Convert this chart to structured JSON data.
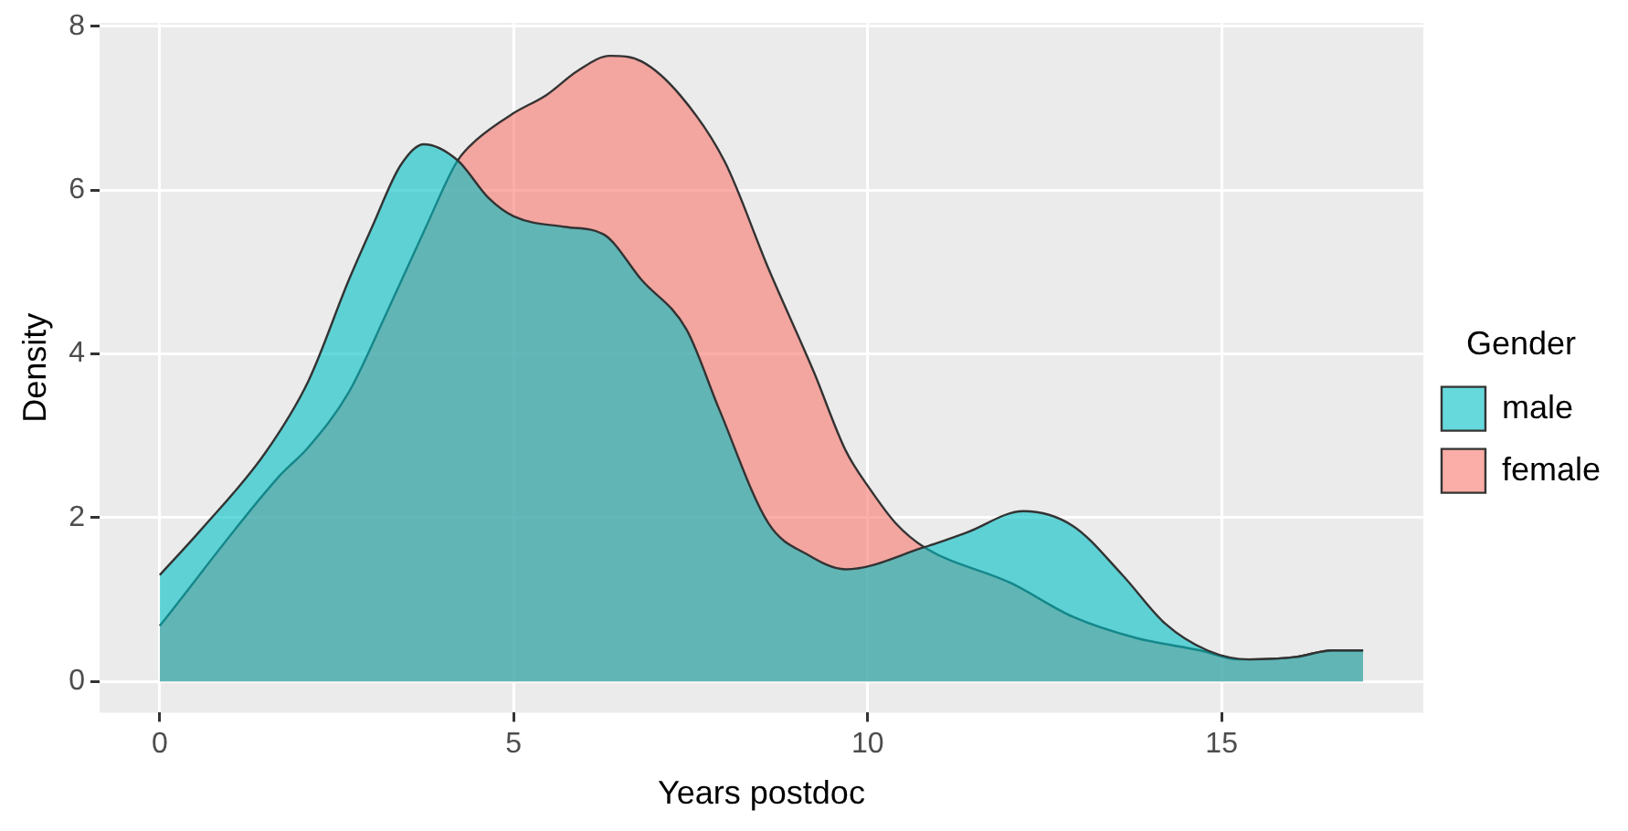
{
  "chart_data": {
    "type": "area",
    "xlabel": "Years postdoc",
    "ylabel": "Density",
    "legend_title": "Gender",
    "legend": "right",
    "grid": true,
    "xlim": [
      -0.85,
      17.85
    ],
    "xticks": [
      0,
      5,
      10,
      15
    ],
    "ylim": [
      -0.38,
      8.04
    ],
    "yticks": [
      0,
      2,
      4,
      6,
      8
    ],
    "series": [
      {
        "name": "male",
        "color": "#00bfc4",
        "x": [
          0,
          0.58,
          1.48,
          2.1,
          2.67,
          3.0,
          3.4,
          3.73,
          4.2,
          4.65,
          5.0,
          5.73,
          6.27,
          6.81,
          7.44,
          7.9,
          8.6,
          9.15,
          9.69,
          10.8,
          11.4,
          12.2,
          12.9,
          13.6,
          14.2,
          14.8,
          15.4,
          16.05,
          16.56,
          17
        ],
        "values": [
          1.3,
          1.85,
          2.78,
          3.67,
          4.9,
          5.55,
          6.3,
          6.56,
          6.37,
          5.9,
          5.68,
          5.55,
          5.46,
          4.9,
          4.3,
          3.33,
          1.93,
          1.55,
          1.37,
          1.64,
          1.82,
          2.08,
          1.9,
          1.3,
          0.71,
          0.38,
          0.27,
          0.3,
          0.38,
          0.38
        ]
      },
      {
        "name": "female",
        "color": "#f8766d",
        "x": [
          0,
          1.68,
          2.1,
          2.67,
          3.2,
          3.75,
          4.2,
          4.47,
          5.0,
          5.46,
          5.91,
          6.36,
          6.81,
          7.35,
          7.98,
          8.6,
          9.24,
          9.69,
          10.05,
          10.4,
          10.8,
          12.03,
          12.9,
          13.8,
          14.7,
          15.24,
          16.05,
          16.56,
          17
        ],
        "values": [
          0.68,
          2.5,
          2.86,
          3.53,
          4.49,
          5.53,
          6.35,
          6.61,
          6.94,
          7.16,
          7.46,
          7.64,
          7.57,
          7.16,
          6.35,
          5.04,
          3.78,
          2.82,
          2.33,
          1.93,
          1.64,
          1.2,
          0.79,
          0.53,
          0.38,
          0.27,
          0.3,
          0.38,
          0.38
        ]
      }
    ]
  }
}
